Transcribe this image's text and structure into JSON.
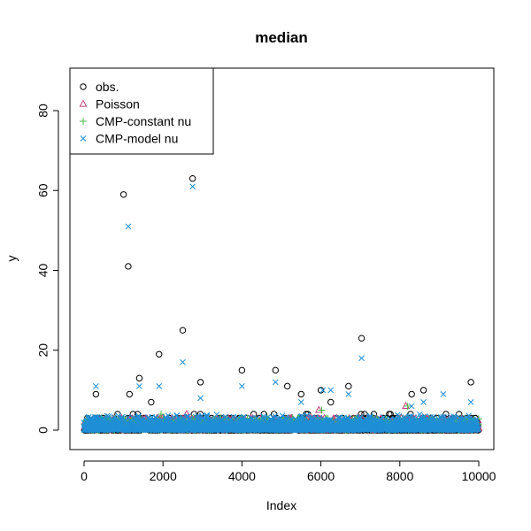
{
  "chart_data": {
    "type": "scatter",
    "title": "median",
    "xlabel": "Index",
    "ylabel": "y",
    "xlim": [
      0,
      10000
    ],
    "ylim": [
      0,
      85
    ],
    "xticks": [
      0,
      2000,
      4000,
      6000,
      8000,
      10000
    ],
    "yticks": [
      0,
      20,
      40,
      60,
      80
    ],
    "grid": false,
    "legend_position": "top-left",
    "series": [
      {
        "name": "obs.",
        "marker": "circle",
        "color": "#000000",
        "notable_points": [
          {
            "x": 1000,
            "y": 59
          },
          {
            "x": 1120,
            "y": 41
          },
          {
            "x": 2750,
            "y": 63
          },
          {
            "x": 2500,
            "y": 25
          },
          {
            "x": 7030,
            "y": 23
          },
          {
            "x": 1900,
            "y": 19
          },
          {
            "x": 4000,
            "y": 15
          },
          {
            "x": 4850,
            "y": 15
          },
          {
            "x": 1400,
            "y": 13
          },
          {
            "x": 9800,
            "y": 12
          },
          {
            "x": 2950,
            "y": 12
          },
          {
            "x": 5150,
            "y": 11
          },
          {
            "x": 6700,
            "y": 11
          },
          {
            "x": 6000,
            "y": 10
          },
          {
            "x": 8600,
            "y": 10
          },
          {
            "x": 300,
            "y": 9
          },
          {
            "x": 5500,
            "y": 9
          },
          {
            "x": 8300,
            "y": 9
          },
          {
            "x": 1150,
            "y": 9
          },
          {
            "x": 6250,
            "y": 7
          },
          {
            "x": 1700,
            "y": 7
          }
        ]
      },
      {
        "name": "Poisson",
        "marker": "triangle",
        "color": "#c2467e",
        "notable_points": [
          {
            "x": 8150,
            "y": 6
          },
          {
            "x": 5950,
            "y": 5
          },
          {
            "x": 2600,
            "y": 4
          }
        ]
      },
      {
        "name": "CMP-constant nu",
        "marker": "plus",
        "color": "#4dbb4a",
        "notable_points": [
          {
            "x": 8200,
            "y": 6
          },
          {
            "x": 6020,
            "y": 5
          },
          {
            "x": 1950,
            "y": 4
          }
        ]
      },
      {
        "name": "CMP-model nu",
        "marker": "x",
        "color": "#1f8fd6",
        "notable_points": [
          {
            "x": 2750,
            "y": 61
          },
          {
            "x": 1120,
            "y": 51
          },
          {
            "x": 7030,
            "y": 18
          },
          {
            "x": 2500,
            "y": 17
          },
          {
            "x": 4850,
            "y": 12
          },
          {
            "x": 300,
            "y": 11
          },
          {
            "x": 1900,
            "y": 11
          },
          {
            "x": 4000,
            "y": 11
          },
          {
            "x": 1400,
            "y": 11
          },
          {
            "x": 6250,
            "y": 10
          },
          {
            "x": 6050,
            "y": 10
          },
          {
            "x": 9100,
            "y": 9
          },
          {
            "x": 6700,
            "y": 9
          },
          {
            "x": 2950,
            "y": 8
          },
          {
            "x": 5500,
            "y": 7
          },
          {
            "x": 9800,
            "y": 7
          },
          {
            "x": 8300,
            "y": 6
          },
          {
            "x": 8600,
            "y": 7
          }
        ]
      }
    ]
  }
}
